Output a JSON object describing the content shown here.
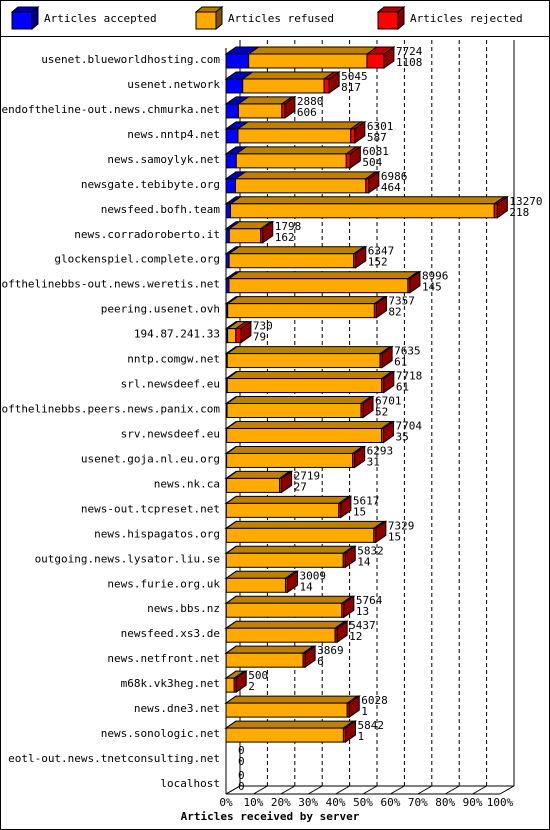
{
  "chart_data": {
    "type": "bar3d",
    "orientation": "horizontal",
    "stacked": true,
    "x_label": "Articles received by server",
    "categories": [
      "usenet.blueworldhosting.com",
      "usenet.network",
      "endoftheline-out.news.chmurka.net",
      "news.nntp4.net",
      "news.samoylyk.net",
      "newsgate.tebibyte.org",
      "newsfeed.bofh.team",
      "news.corradoroberto.it",
      "glockenspiel.complete.org",
      "endofthelinebbs-out.news.weretis.net",
      "peering.usenet.ovh",
      "194.87.241.33",
      "nntp.comgw.net",
      "srl.newsdeef.eu",
      "endofthelinebbs.peers.news.panix.com",
      "srv.newsdeef.eu",
      "usenet.goja.nl.eu.org",
      "news.nk.ca",
      "news-out.tcpreset.net",
      "news.hispagatos.org",
      "outgoing.news.lysator.liu.se",
      "news.furie.org.uk",
      "news.bbs.nz",
      "newsfeed.xs3.de",
      "news.netfront.net",
      "m68k.vk3heg.net",
      "news.dne3.net",
      "news.sonologic.net",
      "eotl-out.news.tnetconsulting.net",
      "localhost"
    ],
    "series": [
      {
        "name": "Articles accepted",
        "color": "#0000ff",
        "values": [
          1108,
          817,
          606,
          587,
          504,
          464,
          218,
          162,
          152,
          145,
          82,
          79,
          61,
          61,
          52,
          35,
          31,
          27,
          15,
          15,
          14,
          14,
          13,
          12,
          6,
          2,
          1,
          1,
          0,
          0
        ]
      },
      {
        "name": "Articles refused",
        "color": "#ffaa00",
        "values": [
          5786,
          3978,
          2124,
          5514,
          5377,
          6372,
          12902,
          1536,
          6095,
          8751,
          7175,
          401,
          7474,
          7557,
          6549,
          7569,
          6162,
          2592,
          5502,
          7214,
          5718,
          2895,
          5651,
          5325,
          3763,
          398,
          5927,
          5741,
          0,
          0
        ]
      },
      {
        "name": "Articles rejected",
        "color": "#ff0000",
        "values": [
          830,
          250,
          150,
          200,
          200,
          150,
          150,
          100,
          100,
          100,
          100,
          250,
          100,
          100,
          100,
          100,
          100,
          100,
          100,
          100,
          100,
          100,
          100,
          100,
          100,
          100,
          100,
          100,
          0,
          0
        ]
      }
    ],
    "totals": [
      7724,
      5045,
      2880,
      6301,
      6081,
      6986,
      13270,
      1798,
      6347,
      8996,
      7357,
      730,
      7635,
      7718,
      6701,
      7704,
      6293,
      2719,
      5617,
      7329,
      5832,
      3009,
      5764,
      5437,
      3869,
      500,
      6028,
      5842,
      0,
      0
    ],
    "xlim": [
      0,
      13400
    ],
    "xticks": [
      {
        "value": 0,
        "label": "0%"
      },
      {
        "value": 1340,
        "label": "10%"
      },
      {
        "value": 2680,
        "label": "20%"
      },
      {
        "value": 4020,
        "label": "30%"
      },
      {
        "value": 5360,
        "label": "40%"
      },
      {
        "value": 6700,
        "label": "50%"
      },
      {
        "value": 8040,
        "label": "60%"
      },
      {
        "value": 9380,
        "label": "70%"
      },
      {
        "value": 10720,
        "label": "80%"
      },
      {
        "value": 12060,
        "label": "90%"
      },
      {
        "value": 13400,
        "label": "100%"
      }
    ],
    "grid": true
  }
}
